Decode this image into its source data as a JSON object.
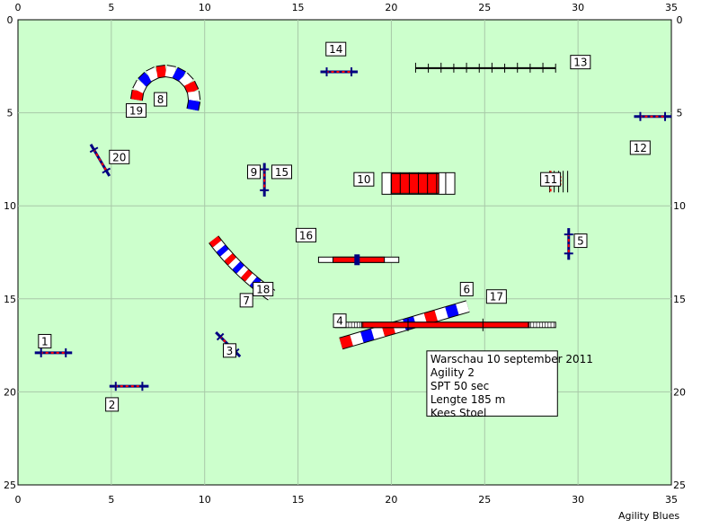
{
  "course": {
    "x_range": [
      0,
      35
    ],
    "y_range": [
      0,
      25
    ],
    "x_ticks": [
      "0",
      "5",
      "10",
      "15",
      "20",
      "25",
      "30",
      "35"
    ],
    "y_ticks": [
      "0",
      "5",
      "10",
      "15",
      "20",
      "25"
    ],
    "field_color": "#ccffcc",
    "grid": true
  },
  "labels": [
    {
      "text": "1",
      "x": 1.1,
      "y": 17.3
    },
    {
      "text": "2",
      "x": 4.7,
      "y": 20.7
    },
    {
      "text": "3",
      "x": 11.0,
      "y": 17.8
    },
    {
      "text": "4",
      "x": 16.9,
      "y": 16.2
    },
    {
      "text": "5",
      "x": 29.8,
      "y": 11.9
    },
    {
      "text": "6",
      "x": 23.7,
      "y": 14.5
    },
    {
      "text": "7",
      "x": 11.9,
      "y": 15.1
    },
    {
      "text": "8",
      "x": 7.3,
      "y": 4.3
    },
    {
      "text": "9",
      "x": 12.3,
      "y": 8.2
    },
    {
      "text": "10",
      "x": 18.0,
      "y": 8.6
    },
    {
      "text": "11",
      "x": 28.0,
      "y": 8.6
    },
    {
      "text": "12",
      "x": 32.8,
      "y": 6.9
    },
    {
      "text": "13",
      "x": 29.6,
      "y": 2.3
    },
    {
      "text": "14",
      "x": 16.5,
      "y": 1.6
    },
    {
      "text": "15",
      "x": 13.6,
      "y": 8.2
    },
    {
      "text": "16",
      "x": 14.9,
      "y": 11.6
    },
    {
      "text": "17",
      "x": 25.1,
      "y": 14.9
    },
    {
      "text": "18",
      "x": 12.6,
      "y": 14.5
    },
    {
      "text": "19",
      "x": 5.8,
      "y": 4.9
    },
    {
      "text": "20",
      "x": 4.9,
      "y": 7.4
    }
  ],
  "info": {
    "lines": [
      "Warschau 10 september 2011",
      "Agility 2",
      "SPT 50 sec",
      "Lengte 185 m",
      "Kees Stoel"
    ],
    "x0": 21.9,
    "y0": 17.8,
    "x1": 28.9,
    "y1": 21.3
  },
  "footer": "Agility Blues",
  "colors": {
    "red": "#ff0000",
    "blue": "#0000ff",
    "navy": "#000080",
    "white": "#ffffff"
  },
  "hurdles": [
    {
      "id": "1",
      "x1": 0.9,
      "y1": 17.9,
      "x2": 2.9,
      "y2": 17.9,
      "style": "red-white"
    },
    {
      "id": "2",
      "x1": 4.9,
      "y1": 19.7,
      "x2": 7.0,
      "y2": 19.7,
      "style": "red-white"
    },
    {
      "id": "3",
      "x1": 10.6,
      "y1": 16.8,
      "x2": 11.9,
      "y2": 18.1,
      "style": "red-white"
    },
    {
      "id": "5",
      "x1": 29.5,
      "y1": 11.2,
      "x2": 29.5,
      "y2": 12.9,
      "style": "red-white"
    },
    {
      "id": "9",
      "x1": 13.2,
      "y1": 7.7,
      "x2": 13.2,
      "y2": 9.5,
      "style": "red-white"
    },
    {
      "id": "12",
      "x1": 33.0,
      "y1": 5.2,
      "x2": 35.0,
      "y2": 5.2,
      "style": "red-white"
    },
    {
      "id": "14",
      "x1": 16.2,
      "y1": 2.8,
      "x2": 18.2,
      "y2": 2.8,
      "style": "red-white"
    },
    {
      "id": "20",
      "x1": 3.9,
      "y1": 6.7,
      "x2": 4.9,
      "y2": 8.4,
      "style": "red-white"
    }
  ],
  "tunnels": [
    {
      "id": "8",
      "type": "arc",
      "cx": 7.9,
      "cy": 4.3,
      "r": 1.55,
      "start_deg": 180,
      "end_deg": 380,
      "segments": 11
    },
    {
      "id": "18",
      "type": "arc",
      "cx": 21.5,
      "cy": 3.5,
      "r": 13.8,
      "start_deg": 143,
      "end_deg": 125,
      "segments": 14
    },
    {
      "id": "17",
      "type": "line",
      "x1": 17.3,
      "y1": 17.4,
      "x2": 24.1,
      "y2": 15.4,
      "segments": 12
    }
  ],
  "dogwalk": {
    "id": "4",
    "x1": 17.0,
    "y": 16.4,
    "x2": 28.8
  },
  "seesaw": {
    "id": "16",
    "x1": 16.1,
    "y": 12.9,
    "x2": 20.4
  },
  "chute": {
    "id": "10",
    "x1": 19.5,
    "x2": 23.4,
    "y": 8.8
  },
  "weave": {
    "id": "13",
    "x1": 21.3,
    "x2": 28.8,
    "y": 2.6,
    "poles": 12
  },
  "slalom": {
    "id": "11",
    "x": 28.0,
    "y": 8.7
  }
}
